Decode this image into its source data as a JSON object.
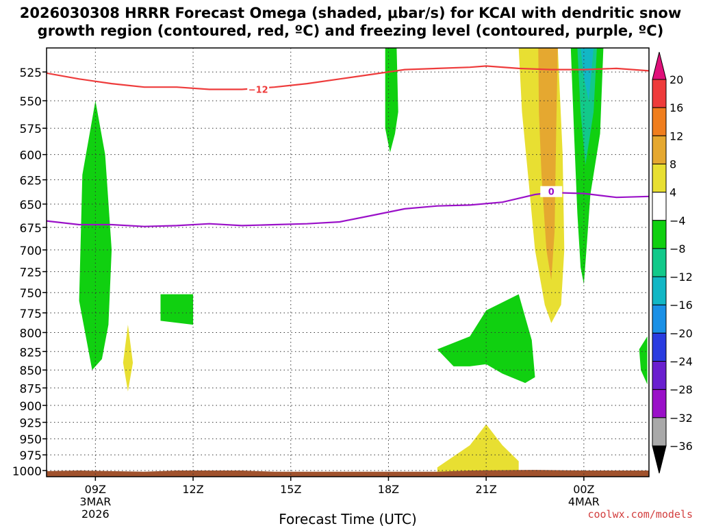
{
  "title": {
    "line1": "2026030308 HRRR Forecast Omega (shaded, μbar/s) for KCAI with dendritic snow",
    "line2": "growth region (contoured, red, ºC) and freezing level (contoured, purple, ºC)"
  },
  "credit": "coolwx.com/models",
  "chart_data": {
    "type": "heatmap",
    "title": "2026030308 HRRR Forecast Omega (shaded, μbar/s) for KCAI with dendritic snow growth region (contoured, red, ºC) and freezing level (contoured, purple, ºC)",
    "xlabel": "Forecast Time (UTC)",
    "ylabel": "",
    "x_range_hours": [
      7.5,
      26.0
    ],
    "y_range_hpa": [
      505,
      1010
    ],
    "y_scale": "log-pressure",
    "grid": true,
    "x_ticks": [
      {
        "hour": 9,
        "label": "09Z",
        "sub1": "3MAR",
        "sub2": "2026"
      },
      {
        "hour": 12,
        "label": "12Z",
        "sub1": "",
        "sub2": ""
      },
      {
        "hour": 15,
        "label": "15Z",
        "sub1": "",
        "sub2": ""
      },
      {
        "hour": 18,
        "label": "18Z",
        "sub1": "",
        "sub2": ""
      },
      {
        "hour": 21,
        "label": "21Z",
        "sub1": "",
        "sub2": ""
      },
      {
        "hour": 24,
        "label": "00Z",
        "sub1": "4MAR",
        "sub2": ""
      }
    ],
    "y_ticks": [
      525,
      550,
      575,
      600,
      625,
      650,
      675,
      700,
      725,
      750,
      775,
      800,
      825,
      850,
      875,
      900,
      925,
      950,
      975,
      1000
    ],
    "colorbar": {
      "labels": [
        "20",
        "16",
        "12",
        "8",
        "4",
        "−4",
        "−8",
        "−12",
        "−16",
        "−20",
        "−24",
        "−28",
        "−32",
        "−36"
      ],
      "label_values": [
        20,
        16,
        12,
        8,
        4,
        -4,
        -8,
        -12,
        -16,
        -20,
        -24,
        -28,
        -32,
        -36
      ],
      "bins": [
        {
          "from": 16,
          "to": 20,
          "color": "#ee3b3b"
        },
        {
          "from": 12,
          "to": 16,
          "color": "#f07e1e"
        },
        {
          "from": 8,
          "to": 12,
          "color": "#e5a830"
        },
        {
          "from": 4,
          "to": 8,
          "color": "#e8df32"
        },
        {
          "from": -4,
          "to": 4,
          "color": "#ffffff"
        },
        {
          "from": -8,
          "to": -4,
          "color": "#10d010"
        },
        {
          "from": -12,
          "to": -8,
          "color": "#12c98a"
        },
        {
          "from": -16,
          "to": -12,
          "color": "#12b7c5"
        },
        {
          "from": -20,
          "to": -16,
          "color": "#1a90e6"
        },
        {
          "from": -24,
          "to": -20,
          "color": "#2a3ce0"
        },
        {
          "from": -28,
          "to": -24,
          "color": "#6a1fcf"
        },
        {
          "from": -32,
          "to": -28,
          "color": "#9a10c8"
        },
        {
          "from": -36,
          "to": -32,
          "color": "#a9a9a9"
        }
      ],
      "top_arrow_color": "#e0107a",
      "bottom_arrow_color": "#000000"
    },
    "contours": [
      {
        "name": "-12",
        "label": "−12",
        "color": "#ee3b3b",
        "label_at": {
          "hour": 14.0,
          "p": 540
        },
        "points": [
          [
            7.5,
            526
          ],
          [
            8.5,
            531
          ],
          [
            9.5,
            535
          ],
          [
            10.5,
            538
          ],
          [
            11.5,
            538
          ],
          [
            12.5,
            540
          ],
          [
            13.5,
            540
          ],
          [
            14.5,
            538
          ],
          [
            15.5,
            535
          ],
          [
            16.5,
            531
          ],
          [
            17.5,
            527
          ],
          [
            18.5,
            523
          ],
          [
            19.5,
            522
          ],
          [
            20.5,
            521
          ],
          [
            21.0,
            520
          ],
          [
            22.0,
            522
          ],
          [
            23.0,
            523
          ],
          [
            24.0,
            523
          ],
          [
            25.0,
            522
          ],
          [
            26.0,
            524
          ]
        ]
      },
      {
        "name": "0",
        "label": "0",
        "color": "#9a10c8",
        "label_at": {
          "hour": 23.0,
          "p": 637
        },
        "points": [
          [
            7.5,
            668
          ],
          [
            8.5,
            672
          ],
          [
            9.5,
            672
          ],
          [
            10.5,
            674
          ],
          [
            11.5,
            673
          ],
          [
            12.5,
            671
          ],
          [
            13.5,
            673
          ],
          [
            14.5,
            672
          ],
          [
            15.5,
            671
          ],
          [
            16.5,
            669
          ],
          [
            17.5,
            662
          ],
          [
            18.5,
            655
          ],
          [
            19.5,
            652
          ],
          [
            20.5,
            651
          ],
          [
            21.5,
            648
          ],
          [
            22.5,
            640
          ],
          [
            23.0,
            638
          ],
          [
            24.0,
            639
          ],
          [
            24.5,
            641
          ],
          [
            25.0,
            643
          ],
          [
            26.0,
            642
          ]
        ]
      }
    ],
    "omega_regions": [
      {
        "value": -6,
        "points": [
          [
            8.9,
            850
          ],
          [
            8.5,
            760
          ],
          [
            8.6,
            620
          ],
          [
            9.0,
            550
          ],
          [
            9.3,
            600
          ],
          [
            9.5,
            700
          ],
          [
            9.4,
            790
          ],
          [
            9.2,
            835
          ]
        ]
      },
      {
        "value": 6,
        "points": [
          [
            10.0,
            880
          ],
          [
            9.85,
            840
          ],
          [
            10.0,
            790
          ],
          [
            10.15,
            840
          ]
        ]
      },
      {
        "value": -6,
        "points": [
          [
            11.0,
            752
          ],
          [
            12.0,
            752
          ],
          [
            12.0,
            790
          ],
          [
            11.0,
            785
          ]
        ]
      },
      {
        "value": -6,
        "points": [
          [
            17.9,
            505
          ],
          [
            18.25,
            505
          ],
          [
            18.3,
            560
          ],
          [
            18.2,
            580
          ],
          [
            18.05,
            598
          ],
          [
            17.9,
            575
          ]
        ]
      },
      {
        "value": -6,
        "points": [
          [
            19.5,
            822
          ],
          [
            20.5,
            805
          ],
          [
            21.0,
            772
          ],
          [
            22.0,
            752
          ],
          [
            22.4,
            810
          ],
          [
            22.5,
            860
          ],
          [
            22.2,
            868
          ],
          [
            21.5,
            855
          ],
          [
            21.0,
            842
          ],
          [
            20.5,
            845
          ],
          [
            20.0,
            845
          ]
        ]
      },
      {
        "value": 6,
        "points": [
          [
            19.5,
            995
          ],
          [
            20.5,
            960
          ],
          [
            21.0,
            928
          ],
          [
            21.5,
            960
          ],
          [
            22.0,
            985
          ],
          [
            22.0,
            1003
          ],
          [
            19.5,
            1003
          ]
        ]
      },
      {
        "value": 6,
        "points": [
          [
            22.0,
            505
          ],
          [
            23.2,
            505
          ],
          [
            23.35,
            600
          ],
          [
            23.4,
            700
          ],
          [
            23.3,
            765
          ],
          [
            23.0,
            788
          ],
          [
            22.8,
            765
          ],
          [
            22.5,
            700
          ],
          [
            22.3,
            625
          ],
          [
            22.1,
            560
          ]
        ]
      },
      {
        "value": 10,
        "points": [
          [
            22.6,
            505
          ],
          [
            23.2,
            505
          ],
          [
            23.15,
            580
          ],
          [
            23.1,
            680
          ],
          [
            23.0,
            735
          ],
          [
            22.85,
            700
          ],
          [
            22.7,
            620
          ],
          [
            22.62,
            560
          ]
        ]
      },
      {
        "value": -6,
        "points": [
          [
            23.6,
            505
          ],
          [
            24.6,
            505
          ],
          [
            24.5,
            580
          ],
          [
            24.2,
            640
          ],
          [
            24.1,
            690
          ],
          [
            24.0,
            740
          ],
          [
            23.9,
            720
          ],
          [
            23.8,
            660
          ],
          [
            23.7,
            580
          ]
        ]
      },
      {
        "value": -10,
        "points": [
          [
            23.8,
            505
          ],
          [
            24.4,
            505
          ],
          [
            24.3,
            560
          ],
          [
            24.05,
            610
          ],
          [
            23.9,
            560
          ]
        ]
      },
      {
        "value": -14,
        "points": [
          [
            23.9,
            505
          ],
          [
            24.3,
            505
          ],
          [
            24.15,
            550
          ],
          [
            24.0,
            530
          ]
        ]
      },
      {
        "value": -6,
        "points": [
          [
            25.7,
            822
          ],
          [
            25.95,
            805
          ],
          [
            25.95,
            870
          ],
          [
            25.75,
            850
          ]
        ]
      }
    ],
    "ground": {
      "color": "#a0522d",
      "points": [
        [
          7.5,
          1001
        ],
        [
          8.5,
          1000
        ],
        [
          9.5,
          1001
        ],
        [
          10.5,
          1002
        ],
        [
          11.5,
          1000
        ],
        [
          13.5,
          1000
        ],
        [
          14.5,
          1002
        ],
        [
          16.5,
          1002
        ],
        [
          19.5,
          1002
        ],
        [
          20.5,
          1000
        ],
        [
          22.5,
          999
        ],
        [
          24.0,
          1000
        ],
        [
          26.0,
          1000
        ]
      ]
    }
  }
}
